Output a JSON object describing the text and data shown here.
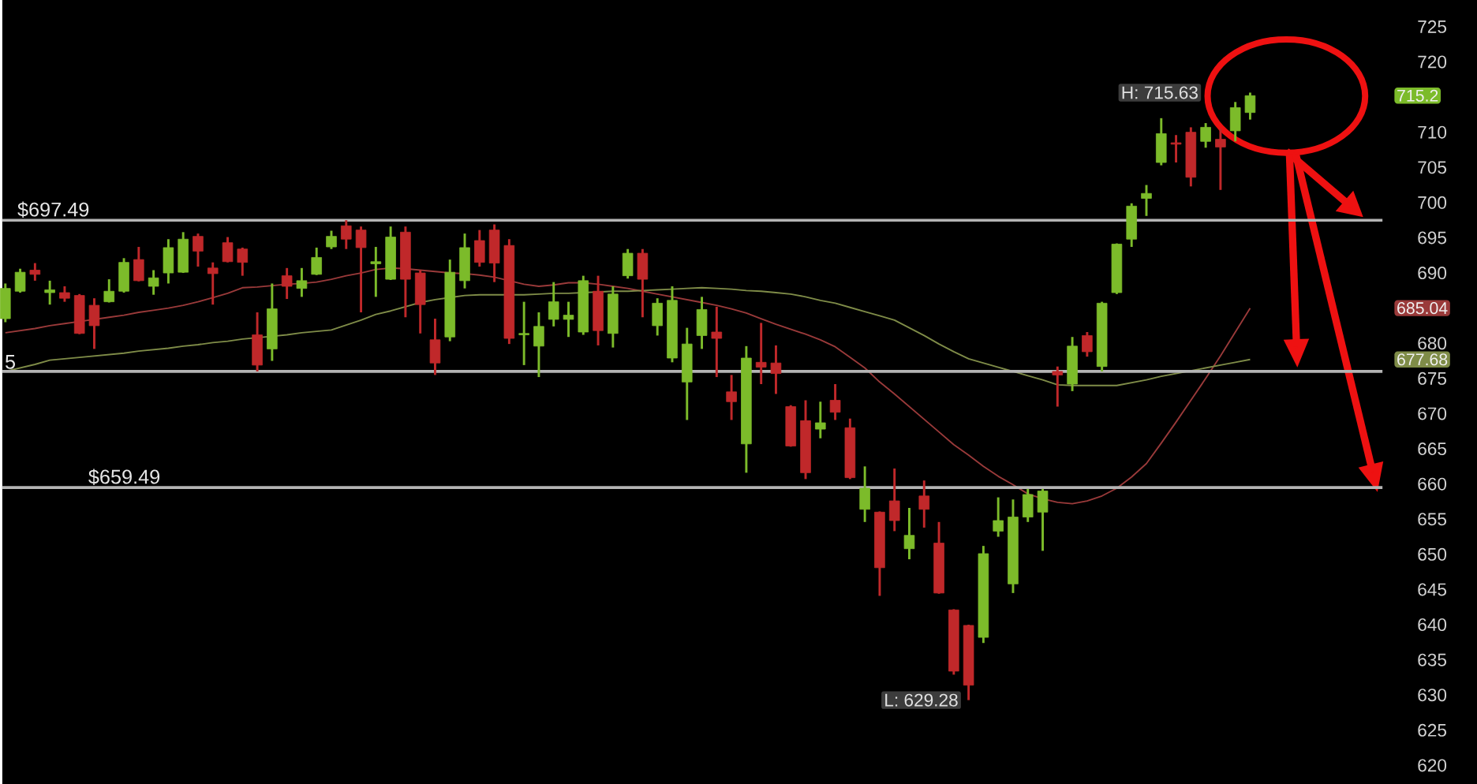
{
  "chart_data": {
    "type": "candlestick",
    "categories": [
      null,
      null,
      null,
      null,
      null,
      null,
      null,
      null,
      null,
      null,
      null,
      null,
      null,
      null,
      null,
      null,
      null,
      null,
      null,
      null,
      null,
      null,
      null,
      null,
      null,
      null,
      null,
      null,
      null,
      null,
      null,
      null,
      null,
      null,
      null,
      null,
      null,
      null,
      null,
      null,
      null,
      null,
      null,
      null,
      null,
      null,
      null,
      null,
      null,
      null,
      null,
      null,
      null,
      null,
      null,
      null,
      null,
      null,
      null,
      null,
      null,
      null,
      null,
      null,
      null,
      null,
      null,
      null,
      null,
      null,
      null,
      null,
      null,
      null,
      null,
      null,
      null,
      null,
      null,
      null,
      null,
      null,
      null,
      null,
      null
    ],
    "ohlc": [
      [
        683.5,
        688.5,
        683.0,
        687.8
      ],
      [
        687.4,
        690.6,
        687.2,
        690.1
      ],
      [
        690.4,
        691.4,
        688.9,
        689.8
      ],
      [
        687.2,
        688.9,
        685.5,
        687.6
      ],
      [
        687.2,
        688.1,
        685.9,
        686.4
      ],
      [
        686.8,
        687.0,
        681.3,
        681.4
      ],
      [
        685.4,
        686.4,
        679.2,
        682.5
      ],
      [
        685.9,
        689.1,
        685.8,
        687.4
      ],
      [
        687.4,
        692.1,
        687.2,
        691.5
      ],
      [
        691.9,
        693.7,
        688.8,
        688.9
      ],
      [
        688.1,
        690.4,
        686.9,
        689.3
      ],
      [
        690.0,
        694.8,
        688.5,
        693.6
      ],
      [
        690.1,
        695.8,
        690.0,
        694.8
      ],
      [
        695.2,
        695.6,
        690.9,
        693.1
      ],
      [
        690.7,
        691.5,
        685.5,
        689.9
      ],
      [
        694.3,
        695.1,
        691.5,
        691.6
      ],
      [
        693.4,
        693.6,
        689.6,
        691.5
      ],
      [
        681.2,
        684.4,
        676.0,
        676.9
      ],
      [
        679.2,
        688.5,
        677.5,
        684.9
      ],
      [
        689.6,
        690.7,
        686.3,
        688.1
      ],
      [
        687.8,
        690.7,
        686.6,
        688.9
      ],
      [
        689.8,
        693.6,
        689.7,
        692.2
      ],
      [
        693.7,
        696.0,
        693.4,
        695.2
      ],
      [
        696.7,
        697.5,
        693.4,
        694.8
      ],
      [
        696.1,
        696.6,
        684.4,
        693.6
      ],
      [
        691.3,
        693.7,
        686.6,
        691.6
      ],
      [
        689.1,
        696.6,
        689.0,
        695.1
      ],
      [
        695.8,
        696.6,
        683.7,
        689.1
      ],
      [
        690.0,
        690.4,
        681.4,
        685.5
      ],
      [
        680.5,
        683.5,
        675.5,
        677.2
      ],
      [
        680.9,
        691.9,
        680.3,
        690.1
      ],
      [
        688.9,
        695.6,
        687.8,
        693.6
      ],
      [
        694.6,
        696.1,
        690.9,
        691.5
      ],
      [
        696.1,
        696.9,
        688.7,
        691.4
      ],
      [
        693.9,
        694.8,
        679.9,
        680.7
      ],
      [
        681.2,
        685.9,
        676.9,
        681.4
      ],
      [
        679.6,
        684.4,
        675.2,
        682.4
      ],
      [
        683.4,
        688.7,
        682.4,
        685.9
      ],
      [
        683.4,
        685.9,
        680.9,
        684.0
      ],
      [
        681.6,
        689.6,
        681.2,
        688.9
      ],
      [
        687.4,
        689.6,
        679.7,
        681.8
      ],
      [
        681.4,
        688.1,
        679.4,
        687.0
      ],
      [
        689.6,
        693.4,
        689.2,
        692.8
      ],
      [
        692.8,
        693.4,
        683.7,
        689.1
      ],
      [
        682.5,
        686.4,
        681.1,
        685.7
      ],
      [
        677.9,
        688.1,
        677.3,
        686.1
      ],
      [
        674.5,
        682.2,
        669.1,
        679.9
      ],
      [
        681.1,
        686.6,
        679.2,
        684.8
      ],
      [
        681.6,
        685.2,
        675.2,
        680.7
      ],
      [
        673.1,
        675.5,
        669.1,
        671.7
      ],
      [
        665.7,
        679.6,
        661.6,
        677.9
      ],
      [
        677.3,
        682.9,
        674.2,
        676.6
      ],
      [
        677.2,
        679.7,
        672.8,
        675.7
      ],
      [
        671.0,
        671.2,
        665.3,
        665.4
      ],
      [
        669.0,
        671.9,
        660.7,
        661.6
      ],
      [
        667.8,
        671.7,
        666.5,
        668.7
      ],
      [
        671.9,
        674.2,
        669.1,
        670.2
      ],
      [
        668.0,
        669.3,
        660.7,
        660.9
      ],
      [
        656.4,
        662.5,
        654.6,
        659.4
      ],
      [
        656.0,
        656.1,
        644.1,
        648.1
      ],
      [
        657.6,
        662.2,
        653.3,
        654.8
      ],
      [
        650.8,
        656.6,
        649.3,
        652.7
      ],
      [
        658.3,
        660.5,
        653.8,
        656.4
      ],
      [
        651.6,
        654.6,
        644.4,
        644.5
      ],
      [
        642.1,
        642.2,
        632.9,
        633.4
      ],
      [
        639.9,
        640.0,
        629.28,
        631.4
      ],
      [
        638.2,
        651.2,
        637.4,
        650.1
      ],
      [
        653.3,
        658.1,
        652.5,
        654.8
      ],
      [
        645.8,
        657.8,
        644.5,
        655.3
      ],
      [
        655.3,
        659.3,
        654.6,
        658.5
      ],
      [
        656.0,
        659.3,
        650.5,
        659.0
      ],
      [
        676.0,
        676.7,
        671.0,
        675.5
      ],
      [
        674.2,
        680.9,
        673.2,
        679.6
      ],
      [
        681.1,
        681.6,
        678.1,
        678.8
      ],
      [
        676.7,
        685.9,
        676.0,
        685.7
      ],
      [
        687.2,
        694.2,
        687.0,
        694.1
      ],
      [
        694.8,
        699.9,
        693.7,
        699.5
      ],
      [
        700.6,
        702.5,
        698.1,
        701.3
      ],
      [
        705.7,
        712.0,
        705.3,
        709.8
      ],
      [
        708.5,
        709.6,
        705.7,
        708.3
      ],
      [
        710.0,
        710.7,
        702.3,
        703.6
      ],
      [
        708.7,
        711.3,
        707.8,
        710.7
      ],
      [
        709.0,
        710.5,
        701.8,
        707.9
      ],
      [
        710.2,
        714.3,
        708.7,
        713.5
      ],
      [
        712.8,
        715.63,
        711.8,
        715.2
      ]
    ],
    "colors": [
      "#7cbb2a",
      "#7cbb2a",
      "#c0282a",
      "#7cbb2a",
      "#c0282a",
      "#c0282a",
      "#c0282a",
      "#7cbb2a",
      "#7cbb2a",
      "#c0282a",
      "#7cbb2a",
      "#7cbb2a",
      "#7cbb2a",
      "#c0282a",
      "#c0282a",
      "#c0282a",
      "#c0282a",
      "#c0282a",
      "#7cbb2a",
      "#c0282a",
      "#7cbb2a",
      "#7cbb2a",
      "#7cbb2a",
      "#c0282a",
      "#c0282a",
      "#7cbb2a",
      "#7cbb2a",
      "#c0282a",
      "#c0282a",
      "#c0282a",
      "#7cbb2a",
      "#7cbb2a",
      "#c0282a",
      "#c0282a",
      "#c0282a",
      "#7cbb2a",
      "#7cbb2a",
      "#7cbb2a",
      "#7cbb2a",
      "#7cbb2a",
      "#c0282a",
      "#7cbb2a",
      "#7cbb2a",
      "#c0282a",
      "#7cbb2a",
      "#7cbb2a",
      "#7cbb2a",
      "#7cbb2a",
      "#c0282a",
      "#c0282a",
      "#7cbb2a",
      "#c0282a",
      "#c0282a",
      "#c0282a",
      "#c0282a",
      "#7cbb2a",
      "#c0282a",
      "#c0282a",
      "#7cbb2a",
      "#c0282a",
      "#c0282a",
      "#7cbb2a",
      "#c0282a",
      "#c0282a",
      "#c0282a",
      "#c0282a",
      "#7cbb2a",
      "#7cbb2a",
      "#7cbb2a",
      "#7cbb2a",
      "#7cbb2a",
      "#c0282a",
      "#7cbb2a",
      "#c0282a",
      "#7cbb2a",
      "#7cbb2a",
      "#7cbb2a",
      "#7cbb2a",
      "#7cbb2a",
      "#c0282a",
      "#c0282a",
      "#7cbb2a",
      "#c0282a",
      "#7cbb2a",
      "#7cbb2a"
    ],
    "series": [
      {
        "type": "line",
        "color": "#9a3a3a",
        "values": [
          681.5,
          681.8,
          682.1,
          682.5,
          682.8,
          683.1,
          683.4,
          683.7,
          684.0,
          684.4,
          684.7,
          685.0,
          685.4,
          685.9,
          686.5,
          687.1,
          687.9,
          688.0,
          688.2,
          688.4,
          688.5,
          688.7,
          689.1,
          689.6,
          690.0,
          690.5,
          690.7,
          690.6,
          690.4,
          690.2,
          690.0,
          689.9,
          689.7,
          689.4,
          688.9,
          688.4,
          688.1,
          688.3,
          688.6,
          688.6,
          688.4,
          688.1,
          687.8,
          687.4,
          687.0,
          686.6,
          686.2,
          685.8,
          685.4,
          684.9,
          684.3,
          683.5,
          682.7,
          682.0,
          681.3,
          680.5,
          679.5,
          678.0,
          676.5,
          674.5,
          672.8,
          671.0,
          669.2,
          667.4,
          665.6,
          664.1,
          662.5,
          661.1,
          659.9,
          658.6,
          657.9,
          657.4,
          657.2,
          657.6,
          658.3,
          659.4,
          661.0,
          662.9,
          665.8,
          668.8,
          671.9,
          675.0,
          678.2,
          681.6,
          685.0
        ]
      },
      {
        "type": "line",
        "color": "#7f8c48",
        "values": [
          676.0,
          676.5,
          677.0,
          677.6,
          677.8,
          678.0,
          678.2,
          678.4,
          678.6,
          678.9,
          679.1,
          679.3,
          679.6,
          679.8,
          680.1,
          680.3,
          680.6,
          680.8,
          681.0,
          681.2,
          681.5,
          681.7,
          681.9,
          682.6,
          683.3,
          684.1,
          684.6,
          685.2,
          685.8,
          686.2,
          686.5,
          686.8,
          686.9,
          686.9,
          686.9,
          686.9,
          687.0,
          687.1,
          687.1,
          687.2,
          687.3,
          687.4,
          687.4,
          687.5,
          687.6,
          687.7,
          687.8,
          687.9,
          687.8,
          687.7,
          687.5,
          687.4,
          687.2,
          687.0,
          686.6,
          686.1,
          685.7,
          685.1,
          684.5,
          683.9,
          683.3,
          682.2,
          681.1,
          679.9,
          678.8,
          677.8,
          677.2,
          676.6,
          676.0,
          675.4,
          674.8,
          674.1,
          674.0,
          674.0,
          674.0,
          674.0,
          674.4,
          674.8,
          675.3,
          675.7,
          676.1,
          676.5,
          676.9,
          677.3,
          677.7
        ]
      }
    ],
    "ylim": [
      617.3,
      728.8
    ],
    "yticks": [
      620,
      625,
      630,
      635,
      640,
      645,
      650,
      655,
      660,
      665,
      670,
      675,
      680,
      690,
      695,
      700,
      705,
      710,
      720,
      725
    ],
    "tick_labels": "y",
    "ref_lines": [
      {
        "axis": "y",
        "value": 697.49,
        "label": "$697.49",
        "color": "#b4b4b4"
      },
      {
        "axis": "y",
        "value": 676.0,
        "color": "#b4b4b4"
      },
      {
        "axis": "y",
        "value": 659.49,
        "label": "$659.49",
        "color": "#b4b4b4"
      }
    ],
    "annotations": [
      "H: 715.63",
      "L: 629.28",
      "715.2",
      "685.04",
      "677.68",
      "5"
    ]
  }
}
